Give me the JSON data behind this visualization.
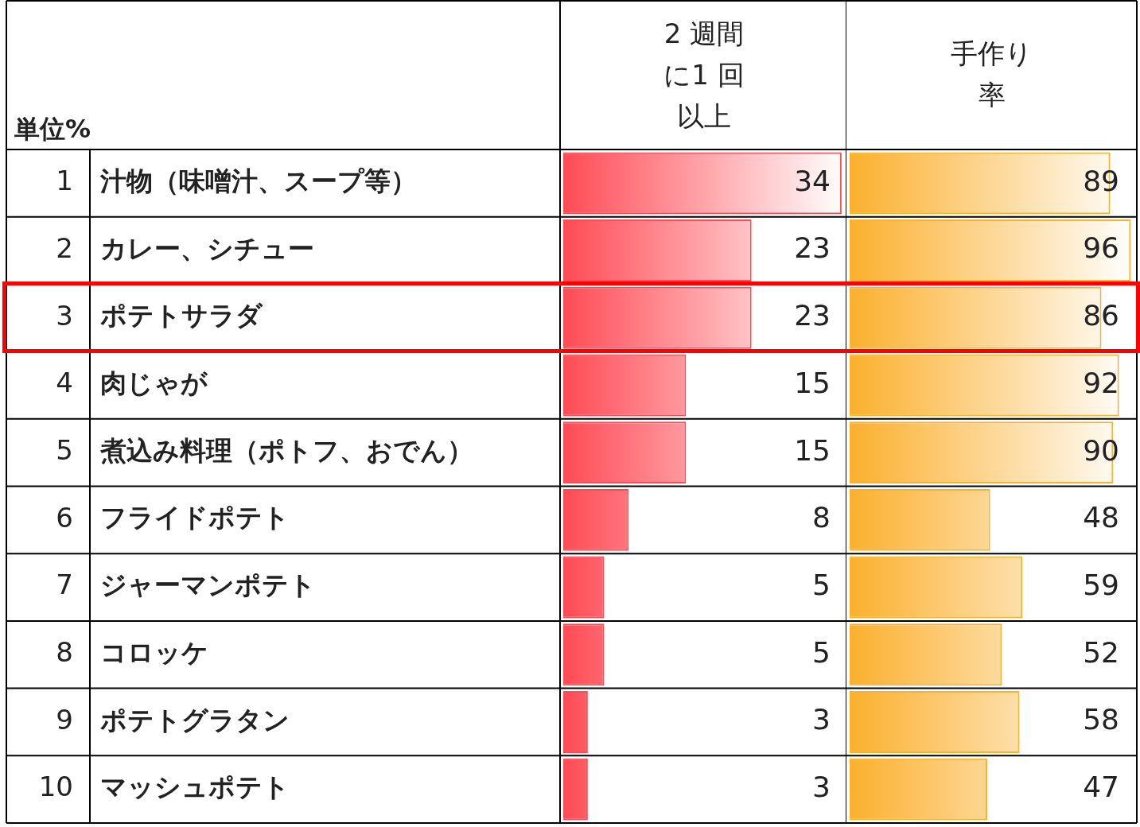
{
  "chart_data": [
    {
      "type": "bar",
      "orientation": "horizontal",
      "title": "2 週間に1 回以上",
      "ylabel": "単位%",
      "annotations": [
        "1",
        "2",
        "3",
        "4",
        "5",
        "6",
        "7",
        "8",
        "9",
        "10"
      ],
      "categories": [
        "汁物（味噌汁、スープ等）",
        "カレー、シチュー",
        "ポテトサラダ",
        "肉じゃが",
        "煮込み料理（ポトフ、おでん）",
        "フライドポテト",
        "ジャーマンポテト",
        "コロッケ",
        "ポテトグラタン",
        "マッシュポテト"
      ],
      "values": [
        34,
        23,
        23,
        15,
        15,
        8,
        5,
        5,
        3,
        3
      ],
      "color": "#ff4b55",
      "xlim": [
        0,
        34.4
      ],
      "data_labels": true
    },
    {
      "type": "bar",
      "orientation": "horizontal",
      "title": "手作り率",
      "tick_labels": false,
      "values": [
        89,
        96,
        86,
        92,
        90,
        48,
        59,
        52,
        58,
        47
      ],
      "color": "#fbb02e",
      "xlim": [
        0,
        97
      ],
      "data_labels": true
    }
  ]
}
